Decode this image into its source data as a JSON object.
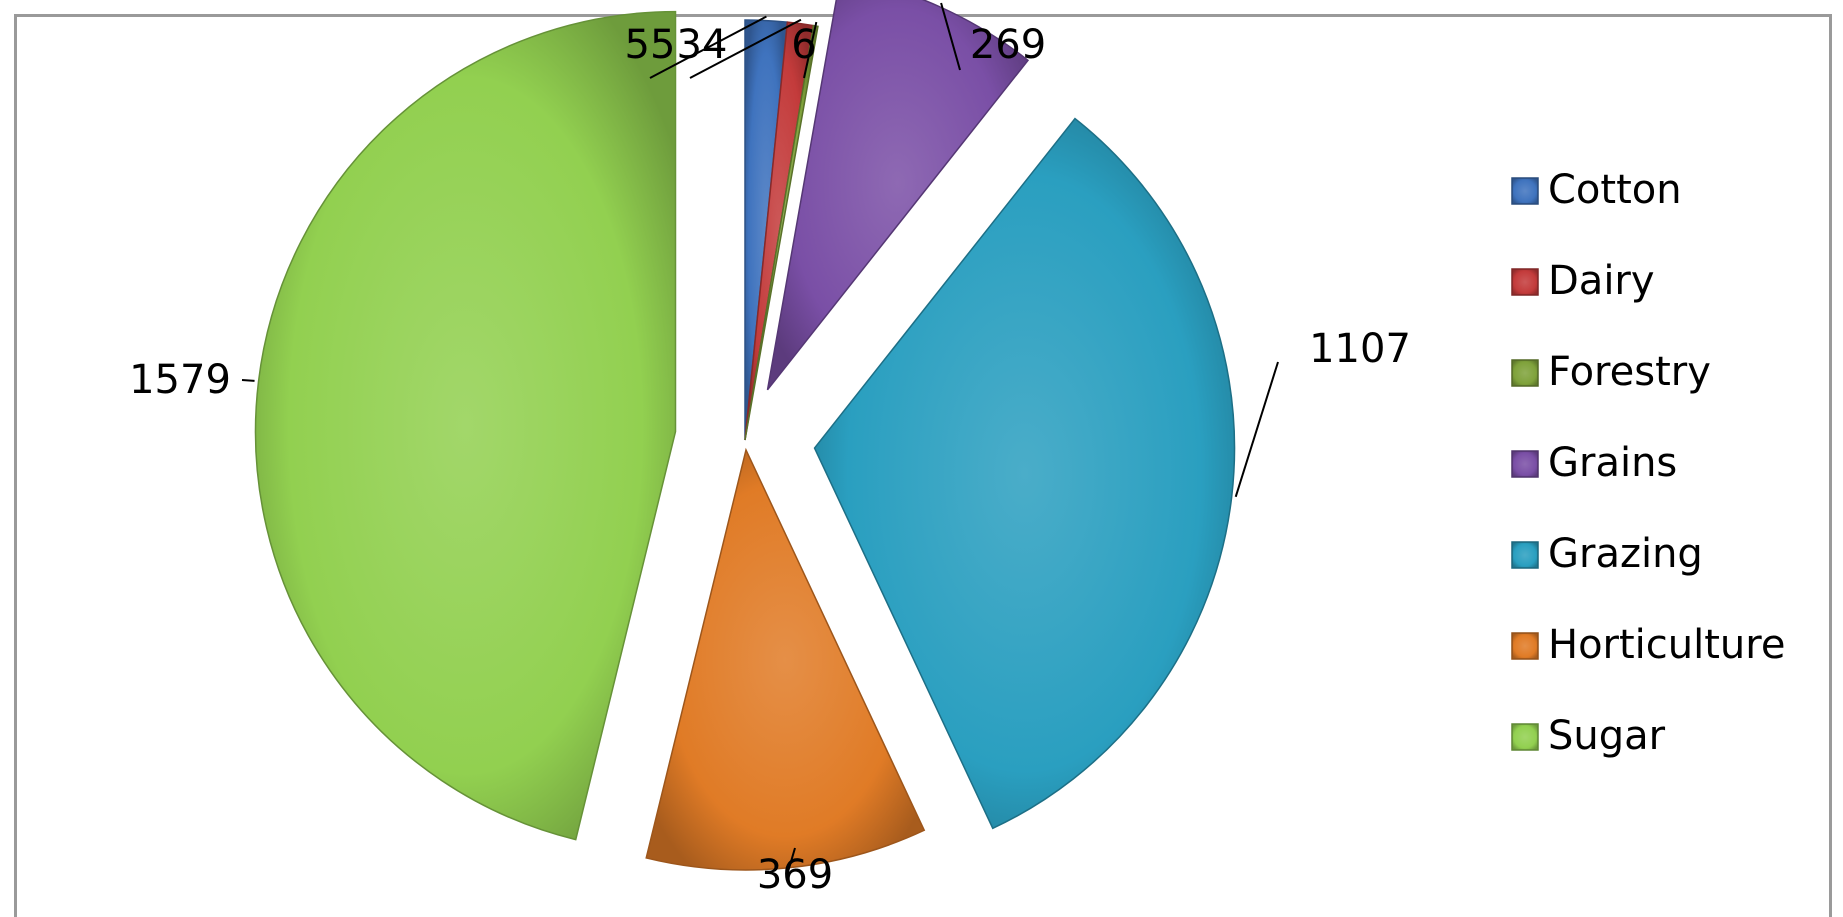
{
  "chart_data": {
    "type": "pie",
    "exploded": true,
    "categories": [
      "Cotton",
      "Dairy",
      "Forestry",
      "Grains",
      "Grazing",
      "Horticulture",
      "Sugar"
    ],
    "values": [
      55,
      34,
      6,
      269,
      1107,
      369,
      1579
    ],
    "data_labels": [
      "55",
      "34",
      "6",
      "269",
      "1107",
      "369",
      "1579"
    ],
    "colors": [
      "#3f73be",
      "#c33b3b",
      "#7fa23b",
      "#7a4fa6",
      "#2a9fc0",
      "#e07b26",
      "#92d050"
    ],
    "legend": {
      "position": "right",
      "entries": [
        "Cotton",
        "Dairy",
        "Forestry",
        "Grains",
        "Grazing",
        "Horticulture",
        "Sugar"
      ]
    },
    "title": ""
  }
}
